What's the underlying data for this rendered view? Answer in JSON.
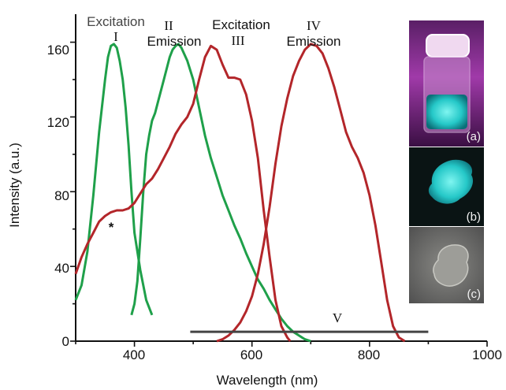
{
  "chart_data": {
    "type": "line",
    "xlabel": "Wavelength (nm)",
    "ylabel": "Intensity (a.u.)",
    "xlim": [
      300,
      1000
    ],
    "ylim": [
      0,
      175
    ],
    "xticks": [
      400,
      600,
      800,
      1000
    ],
    "yticks": [
      0,
      40,
      80,
      120,
      160
    ],
    "grid": false,
    "colors": {
      "green": "#1fa04a",
      "red": "#b3262a",
      "black": "#444444"
    },
    "series": [
      {
        "color": "green",
        "x": [
          300,
          310,
          320,
          330,
          340,
          350,
          355,
          360,
          365,
          370,
          375,
          380,
          385,
          390,
          395,
          400,
          410,
          420,
          430
        ],
        "y": [
          22,
          30,
          48,
          78,
          112,
          140,
          152,
          158,
          159,
          157,
          150,
          140,
          125,
          105,
          80,
          58,
          38,
          22,
          14
        ]
      },
      {
        "color": "green",
        "x": [
          395,
          400,
          405,
          410,
          415,
          420,
          425,
          430,
          435,
          440,
          450,
          460,
          465,
          470,
          475,
          480,
          490,
          500,
          510,
          520,
          530,
          540,
          550,
          560,
          570,
          580,
          590,
          600,
          610,
          620,
          630,
          640,
          650,
          660,
          670,
          680,
          690,
          700
        ],
        "y": [
          14,
          20,
          32,
          55,
          80,
          100,
          110,
          118,
          122,
          128,
          140,
          152,
          156,
          158,
          159,
          157,
          150,
          140,
          125,
          110,
          98,
          88,
          78,
          70,
          62,
          55,
          47,
          40,
          33,
          28,
          22,
          17,
          12,
          8,
          5,
          3,
          1,
          0
        ]
      },
      {
        "color": "red",
        "x": [
          300,
          310,
          320,
          330,
          340,
          350,
          360,
          370,
          380,
          390,
          400,
          410,
          420,
          430,
          440,
          450,
          460,
          470,
          480,
          490,
          500,
          510,
          520,
          530,
          540,
          550,
          560,
          570,
          580,
          590,
          600,
          610,
          620,
          630,
          640,
          650,
          660,
          665
        ],
        "y": [
          36,
          45,
          52,
          58,
          64,
          67,
          69,
          70,
          70,
          71,
          74,
          79,
          84,
          87,
          92,
          98,
          104,
          111,
          116,
          120,
          127,
          140,
          152,
          158,
          156,
          148,
          141,
          141,
          140,
          132,
          118,
          98,
          70,
          45,
          22,
          8,
          2,
          0
        ]
      },
      {
        "color": "red",
        "x": [
          540,
          550,
          560,
          570,
          580,
          590,
          600,
          610,
          620,
          630,
          640,
          650,
          660,
          670,
          680,
          690,
          700,
          710,
          720,
          730,
          740,
          750,
          760,
          770,
          780,
          790,
          800,
          810,
          820,
          830,
          840,
          850,
          860
        ],
        "y": [
          0,
          1,
          3,
          6,
          10,
          16,
          24,
          36,
          52,
          72,
          95,
          115,
          130,
          142,
          150,
          156,
          159,
          158,
          154,
          146,
          136,
          124,
          112,
          104,
          98,
          90,
          78,
          62,
          42,
          22,
          8,
          2,
          0
        ]
      },
      {
        "color": "black",
        "x": [
          495,
          900
        ],
        "y": [
          5,
          5
        ]
      }
    ],
    "annotations": {
      "roman_1": "I",
      "roman_2": "II",
      "roman_3": "III",
      "roman_4": "IV",
      "roman_5": "V",
      "excitation_1": "Excitation",
      "excitation_2": "Excitation",
      "emission_1": "Emission",
      "emission_2": "Emission",
      "asterisk": "*"
    },
    "inset": {
      "label_a": "(a)",
      "label_b": "(b)",
      "label_c": "(c)"
    }
  }
}
